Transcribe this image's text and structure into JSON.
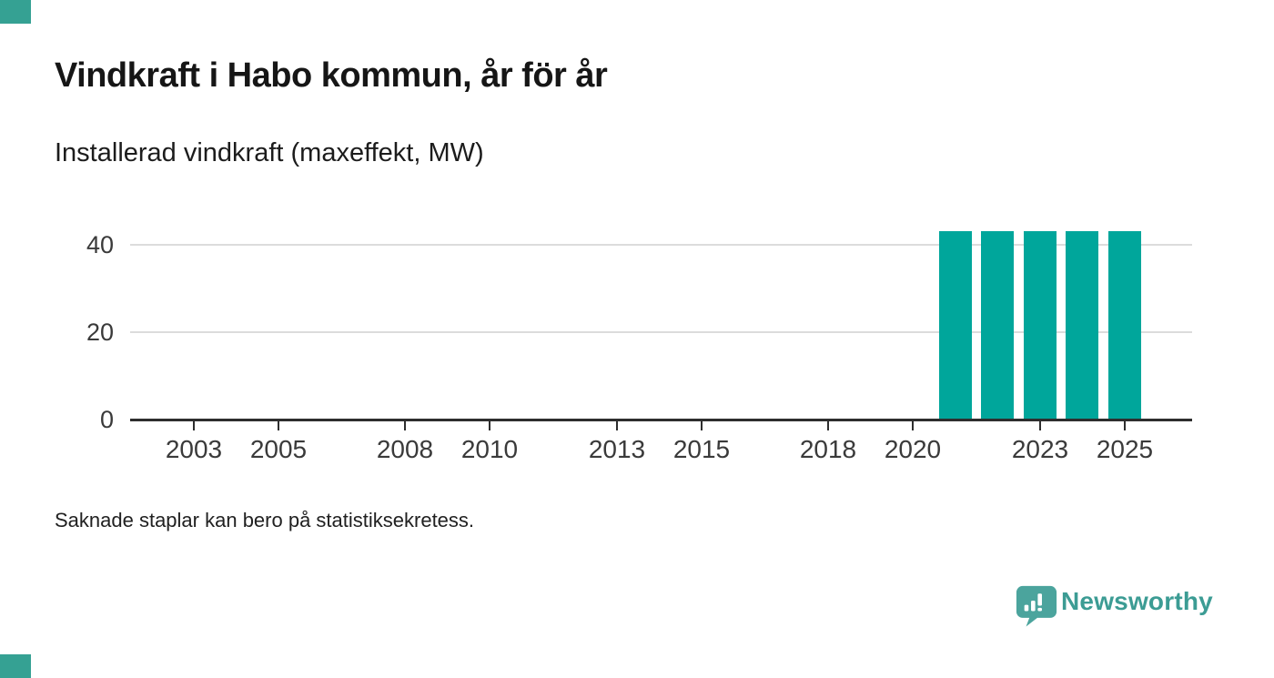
{
  "header": {
    "title": "Vindkraft i Habo kommun, år för år",
    "subtitle": "Installerad vindkraft (maxeffekt, MW)"
  },
  "footnote": "Saknade staplar kan bero på statistiksekretess.",
  "branding": {
    "wordmark": "Newsworthy",
    "icon": "speech-bubble-bar-chart-icon",
    "icon_color": "#4ba49d",
    "wordmark_color": "#3c9c94",
    "corner_mark_color": "#35a193"
  },
  "chart_data": {
    "type": "bar",
    "title": "Vindkraft i Habo kommun, år för år",
    "ylabel": "Installerad vindkraft (maxeffekt, MW)",
    "unit": "MW",
    "x": [
      2021,
      2022,
      2023,
      2024,
      2025
    ],
    "values": [
      43,
      43,
      43,
      43,
      43
    ],
    "note": "Missing bars may be due to statistical secrecy (years 2002-2020, 2026 show no bars)",
    "bar_color": "#00a69b",
    "x_domain": [
      2001.5,
      2026.6
    ],
    "x_ticks": [
      2003,
      2005,
      2008,
      2010,
      2013,
      2015,
      2018,
      2020,
      2023,
      2025
    ],
    "y_ticks": [
      0,
      20,
      40
    ],
    "ylim": [
      0,
      45
    ],
    "grid": "horizontal",
    "legend": "none"
  }
}
